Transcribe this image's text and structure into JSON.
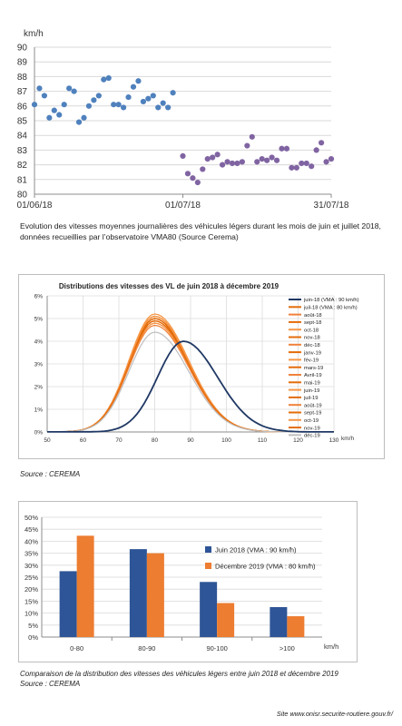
{
  "figure1": {
    "chart_data": {
      "type": "scatter",
      "ylabel": "km/h",
      "ylim": [
        80,
        90
      ],
      "yticks": [
        "80",
        "81",
        "82",
        "83",
        "84",
        "85",
        "86",
        "87",
        "88",
        "89",
        "90"
      ],
      "xtick_labels": [
        "01/06/18",
        "01/07/18",
        "31/07/18"
      ],
      "grid": true,
      "series": [
        {
          "color": "#4f81bd",
          "x": [
            1,
            2,
            3,
            4,
            5,
            6,
            7,
            8,
            9,
            10,
            11,
            12,
            13,
            14,
            15,
            16,
            17,
            18,
            19,
            20,
            21,
            22,
            23,
            24,
            25,
            26,
            27,
            28,
            29,
            30
          ],
          "y": [
            86.1,
            87.2,
            86.7,
            85.2,
            85.7,
            85.4,
            86.1,
            87.2,
            87.0,
            84.9,
            85.2,
            86.0,
            86.4,
            86.7,
            87.8,
            87.9,
            86.1,
            86.1,
            85.9,
            86.6,
            87.3,
            87.7,
            86.3,
            86.5,
            86.7,
            85.9,
            86.2,
            85.9,
            86.9,
            null
          ]
        },
        {
          "color": "#8064a2",
          "x": [
            31,
            32,
            33,
            34,
            35,
            36,
            37,
            38,
            39,
            40,
            41,
            42,
            43,
            44,
            45,
            46,
            47,
            48,
            49,
            50,
            51,
            52,
            53,
            54,
            55,
            56,
            57,
            58,
            59,
            60,
            61
          ],
          "y": [
            82.6,
            81.4,
            81.1,
            80.8,
            81.7,
            82.4,
            82.5,
            82.7,
            82.0,
            82.2,
            82.1,
            82.1,
            82.2,
            83.3,
            83.9,
            82.2,
            82.4,
            82.3,
            82.5,
            82.3,
            83.1,
            83.1,
            81.8,
            81.8,
            82.1,
            82.1,
            81.9,
            83.0,
            83.5,
            82.2,
            82.4
          ]
        }
      ]
    },
    "caption": "Evolution des vitesses moyennes journalières des véhicules légers durant les mois de juin et juillet 2018, données recueillies par l’observatoire VMA80 (Source Cerema)"
  },
  "figure2": {
    "chart_data": {
      "type": "line",
      "title": "Distributions des vitesses des VL de juin 2018 à décembre 2019",
      "xlabel": "km/h",
      "xlim": [
        50,
        130
      ],
      "ylim": [
        0,
        6
      ],
      "xticks": [
        "50",
        "60",
        "70",
        "80",
        "90",
        "100",
        "110",
        "120",
        "130"
      ],
      "yticks": [
        "0%",
        "1%",
        "2%",
        "3%",
        "4%",
        "5%",
        "6%"
      ],
      "grid": true,
      "legend_position": "right",
      "series": [
        {
          "name": "juin-18 (VMA : 90 km/h)",
          "color": "#1f3864",
          "peak_x": 88,
          "peak_y": 4.0
        },
        {
          "name": "juil-18 (VMA : 80 km/h)",
          "color": "#e36c0a",
          "peak_x": 80,
          "peak_y": 4.9
        },
        {
          "name": "août-18",
          "color": "#f0813a",
          "peak_x": 80,
          "peak_y": 4.8
        },
        {
          "name": "sept-18",
          "color": "#e36c0a",
          "peak_x": 80,
          "peak_y": 5.0
        },
        {
          "name": "oct-18",
          "color": "#f79646",
          "peak_x": 80,
          "peak_y": 5.1
        },
        {
          "name": "nov-18",
          "color": "#e36c0a",
          "peak_x": 80,
          "peak_y": 5.0
        },
        {
          "name": "déc-18",
          "color": "#f0813a",
          "peak_x": 80,
          "peak_y": 4.9
        },
        {
          "name": "janv-19",
          "color": "#e36c0a",
          "peak_x": 80,
          "peak_y": 5.1
        },
        {
          "name": "fév-19",
          "color": "#f79646",
          "peak_x": 80,
          "peak_y": 5.2
        },
        {
          "name": "mars-19",
          "color": "#e36c0a",
          "peak_x": 80,
          "peak_y": 5.0
        },
        {
          "name": "Avril-19",
          "color": "#f0813a",
          "peak_x": 80,
          "peak_y": 4.9
        },
        {
          "name": "mai-19",
          "color": "#e36c0a",
          "peak_x": 80,
          "peak_y": 5.0
        },
        {
          "name": "juin-19",
          "color": "#f79646",
          "peak_x": 80,
          "peak_y": 4.8
        },
        {
          "name": "juil-19",
          "color": "#e36c0a",
          "peak_x": 80,
          "peak_y": 4.9
        },
        {
          "name": "août-19",
          "color": "#f0813a",
          "peak_x": 80,
          "peak_y": 4.7
        },
        {
          "name": "sept-19",
          "color": "#e36c0a",
          "peak_x": 80,
          "peak_y": 5.0
        },
        {
          "name": "oct-19",
          "color": "#f79646",
          "peak_x": 80,
          "peak_y": 5.1
        },
        {
          "name": "nov-19",
          "color": "#e36c0a",
          "peak_x": 80,
          "peak_y": 4.9
        },
        {
          "name": "déc-19",
          "color": "#bfbfbf",
          "peak_x": 80,
          "peak_y": 4.4
        }
      ]
    },
    "source": "Source :  CEREMA"
  },
  "figure3": {
    "chart_data": {
      "type": "bar",
      "categories": [
        "0-80",
        "80-90",
        "90-100",
        ">100"
      ],
      "xlabel": "km/h",
      "ylim": [
        0,
        50
      ],
      "yticks": [
        "0%",
        "5%",
        "10%",
        "15%",
        "20%",
        "25%",
        "30%",
        "35%",
        "40%",
        "45%",
        "50%"
      ],
      "grid": true,
      "legend_position": "right",
      "series": [
        {
          "name": "Juin 2018 (VMA : 90 km/h)",
          "color": "#2e5597",
          "values": [
            27.5,
            36.7,
            23.0,
            12.5
          ]
        },
        {
          "name": "Décembre 2019 (VMA : 80 km/h)",
          "color": "#ed7d31",
          "values": [
            42.3,
            35.0,
            14.2,
            8.7
          ]
        }
      ]
    },
    "caption": "Comparaison de la distribution des vitesses des véhicules légers entre juin 2018 et décembre 2019",
    "source": "Source :  CEREMA"
  },
  "footer": "Site www.onisr.securite-routiere.gouv.fr/"
}
